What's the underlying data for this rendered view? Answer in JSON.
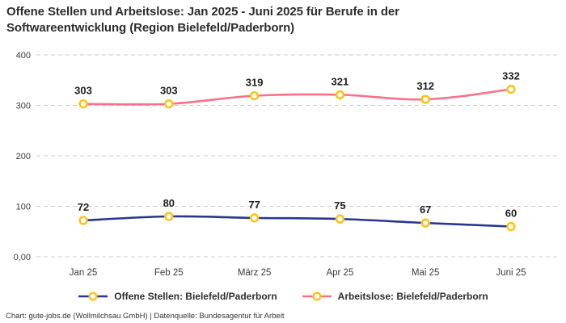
{
  "title": "Offene Stellen und Arbeitslose: Jan 2025 - Juni 2025 für Berufe in der Softwareentwicklung (Region Bielefeld/Paderborn)",
  "footer": "Chart: gute-jobs.de (Wollmilchsau GmbH) | Datenquelle: Bundesagentur für Arbeit",
  "colors": {
    "series_offene_stellen": "#283593",
    "series_arbeitslose": "#f8708a",
    "marker_ring": "#ffc20e",
    "marker_fill": "#ffffff",
    "gridline": "#cccccc",
    "title_text": "#2d2d2d",
    "data_label_text": "#1f1f1f",
    "tick_text": "#3a3a3a",
    "background": "#ffffff"
  },
  "chart_data": {
    "type": "line",
    "title": "Offene Stellen und Arbeitslose: Jan 2025 - Juni 2025 für Berufe in der Softwareentwicklung (Region Bielefeld/Paderborn)",
    "categories": [
      "Jan 25",
      "Feb 25",
      "März 25",
      "Apr 25",
      "Mai 25",
      "Juni 25"
    ],
    "series": [
      {
        "name": "Offene Stellen: Bielefeld/Paderborn",
        "color": "#283593",
        "values": [
          72,
          80,
          77,
          75,
          67,
          60
        ]
      },
      {
        "name": "Arbeitslose: Bielefeld/Paderborn",
        "color": "#f8708a",
        "values": [
          303,
          303,
          319,
          321,
          312,
          332
        ]
      }
    ],
    "xlabel": "",
    "ylabel": "",
    "ylim": [
      0,
      400
    ],
    "yticks": [
      {
        "value": 0,
        "label": "0,00"
      },
      {
        "value": 100,
        "label": "100"
      },
      {
        "value": 200,
        "label": "200"
      },
      {
        "value": 300,
        "label": "300"
      },
      {
        "value": 400,
        "label": "400"
      }
    ],
    "grid": "dashed-horizontal",
    "legend_position": "bottom",
    "data_labels": true,
    "marker_style": "ring"
  }
}
